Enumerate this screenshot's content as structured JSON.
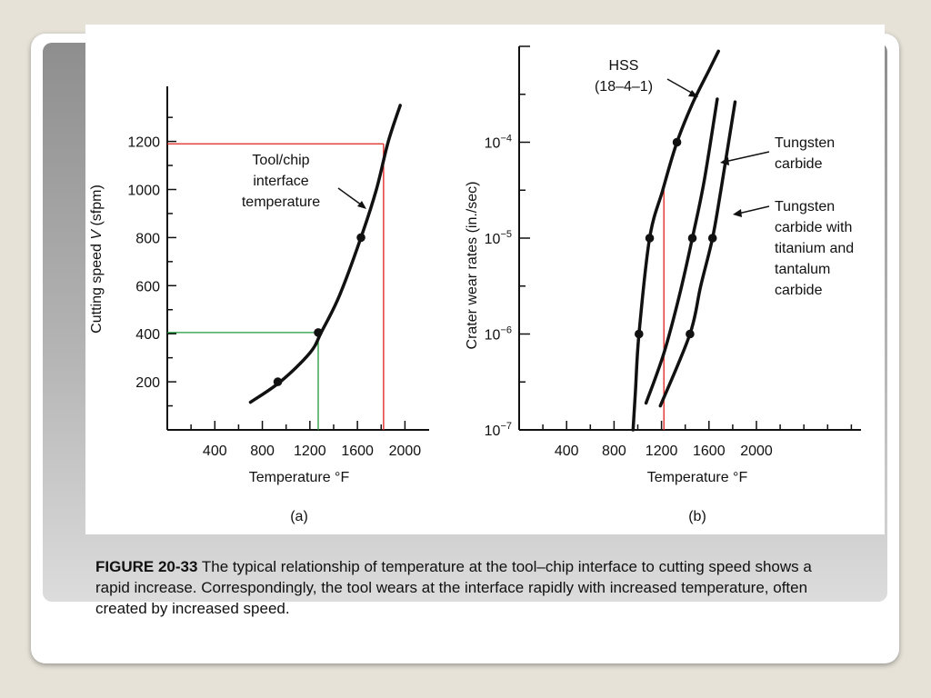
{
  "caption": {
    "figure_label": "FIGURE 20-33",
    "text": "The typical relationship of temperature at the tool–chip interface to cutting speed shows a rapid increase. Correspondingly, the tool wears at the interface rapidly with increased temperature, often created by increased speed."
  },
  "colors": {
    "curve": "#111111",
    "red_guide": "#e0201c",
    "green_guide": "#1f9a3a",
    "panel_gradient_top": "#8e8e8e",
    "background": "#e6e2d8"
  },
  "chart_data": [
    {
      "type": "line",
      "panel_label": "(a)",
      "xlabel": "Temperature °F",
      "ylabel_prefix": "Cutting speed ",
      "ylabel_var": "V",
      "ylabel_suffix": " (sfpm)",
      "x_ticks": [
        400,
        800,
        1200,
        1600,
        2000
      ],
      "y_ticks": [
        200,
        400,
        600,
        800,
        1000,
        1200
      ],
      "xlim": [
        0,
        2150
      ],
      "ylim": [
        0,
        1400
      ],
      "series": [
        {
          "name": "Tool/chip interface temperature",
          "name_lines": [
            "Tool/chip",
            "interface",
            "temperature"
          ],
          "x": [
            700,
            950,
            1200,
            1300,
            1450,
            1630,
            1760,
            1860,
            1960
          ],
          "y": [
            115,
            200,
            320,
            410,
            560,
            800,
            1000,
            1200,
            1350
          ],
          "markers": [
            {
              "x": 930,
              "y": 200
            },
            {
              "x": 1270,
              "y": 405
            },
            {
              "x": 1630,
              "y": 800
            }
          ]
        }
      ],
      "guides": [
        {
          "color": "red",
          "x": 1820,
          "y": 1190
        },
        {
          "color": "green",
          "x": 1270,
          "y": 405
        }
      ]
    },
    {
      "type": "line",
      "panel_label": "(b)",
      "xlabel": "Temperature °F",
      "ylabel": "Crater wear rates (in./sec)",
      "y_scale": "log",
      "x_ticks": [
        400,
        800,
        1200,
        1600,
        2000
      ],
      "y_major_ticks": [
        {
          "value": 1e-07,
          "label_base": "10",
          "label_exp": "−7"
        },
        {
          "value": 1e-06,
          "label_base": "10",
          "label_exp": "−6"
        },
        {
          "value": 1e-05,
          "label_base": "10",
          "label_exp": "−5"
        },
        {
          "value": 0.0001,
          "label_base": "10",
          "label_exp": "−4"
        }
      ],
      "xlim": [
        0,
        2400
      ],
      "ylim_log10": [
        -7,
        -3.05
      ],
      "vertical_guide": {
        "color": "red",
        "x": 1220,
        "y_log10_top": -4.5
      },
      "series": [
        {
          "name": "HSS (18–4–1)",
          "name_lines": [
            "HSS",
            "(18–4–1)"
          ],
          "x": [
            960,
            980,
            1010,
            1100,
            1210,
            1330,
            1460,
            1600,
            1680
          ],
          "log10_y": [
            -7.0,
            -6.6,
            -6.0,
            -5.0,
            -4.5,
            -4.0,
            -3.6,
            -3.25,
            -3.05
          ],
          "markers": [
            {
              "x": 1010,
              "y_log10": -6.0
            },
            {
              "x": 1100,
              "y_log10": -5.0
            },
            {
              "x": 1330,
              "y_log10": -4.0
            }
          ]
        },
        {
          "name": "Tungsten carbide",
          "name_lines": [
            "Tungsten",
            "carbide"
          ],
          "x": [
            1070,
            1220,
            1350,
            1460,
            1560,
            1670
          ],
          "log10_y": [
            -6.72,
            -6.2,
            -5.6,
            -5.0,
            -4.4,
            -3.55
          ],
          "markers": [
            {
              "x": 1460,
              "y_log10": -5.0
            }
          ]
        },
        {
          "name": "Tungsten carbide with titanium and tantalum carbide",
          "name_lines": [
            "Tungsten",
            "carbide with",
            "titanium and",
            "tantalum",
            "carbide"
          ],
          "x": [
            1190,
            1440,
            1530,
            1630,
            1700,
            1820
          ],
          "log10_y": [
            -6.75,
            -6.0,
            -5.5,
            -5.0,
            -4.5,
            -3.58
          ],
          "markers": [
            {
              "x": 1440,
              "y_log10": -6.0
            },
            {
              "x": 1630,
              "y_log10": -5.0
            }
          ]
        }
      ]
    }
  ]
}
